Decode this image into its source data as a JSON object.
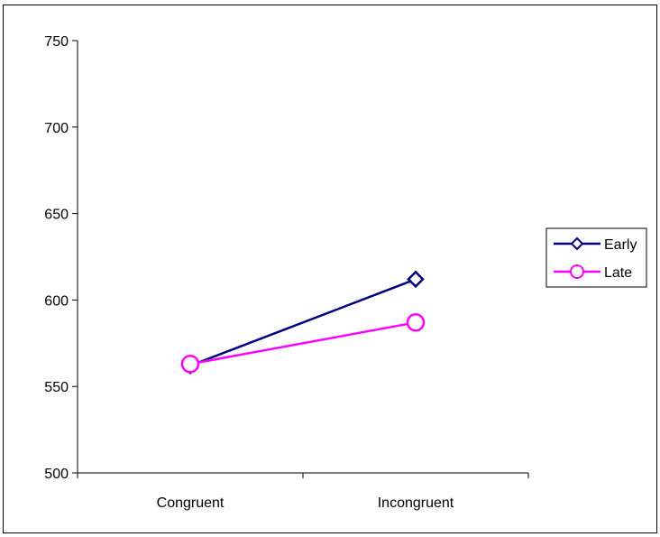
{
  "chart_data": {
    "type": "line",
    "title": "",
    "xlabel": "",
    "ylabel": "",
    "categories": [
      "Congruent",
      "Incongruent"
    ],
    "ylim": [
      500,
      750
    ],
    "yticks": [
      500,
      550,
      600,
      650,
      700,
      750
    ],
    "grid": false,
    "legend_position": "right",
    "series": [
      {
        "name": "Early",
        "values": [
          562,
          612
        ],
        "color": "#000080",
        "marker": "diamond"
      },
      {
        "name": "Late",
        "values": [
          563,
          587
        ],
        "color": "#FF00FF",
        "marker": "circle"
      }
    ]
  }
}
